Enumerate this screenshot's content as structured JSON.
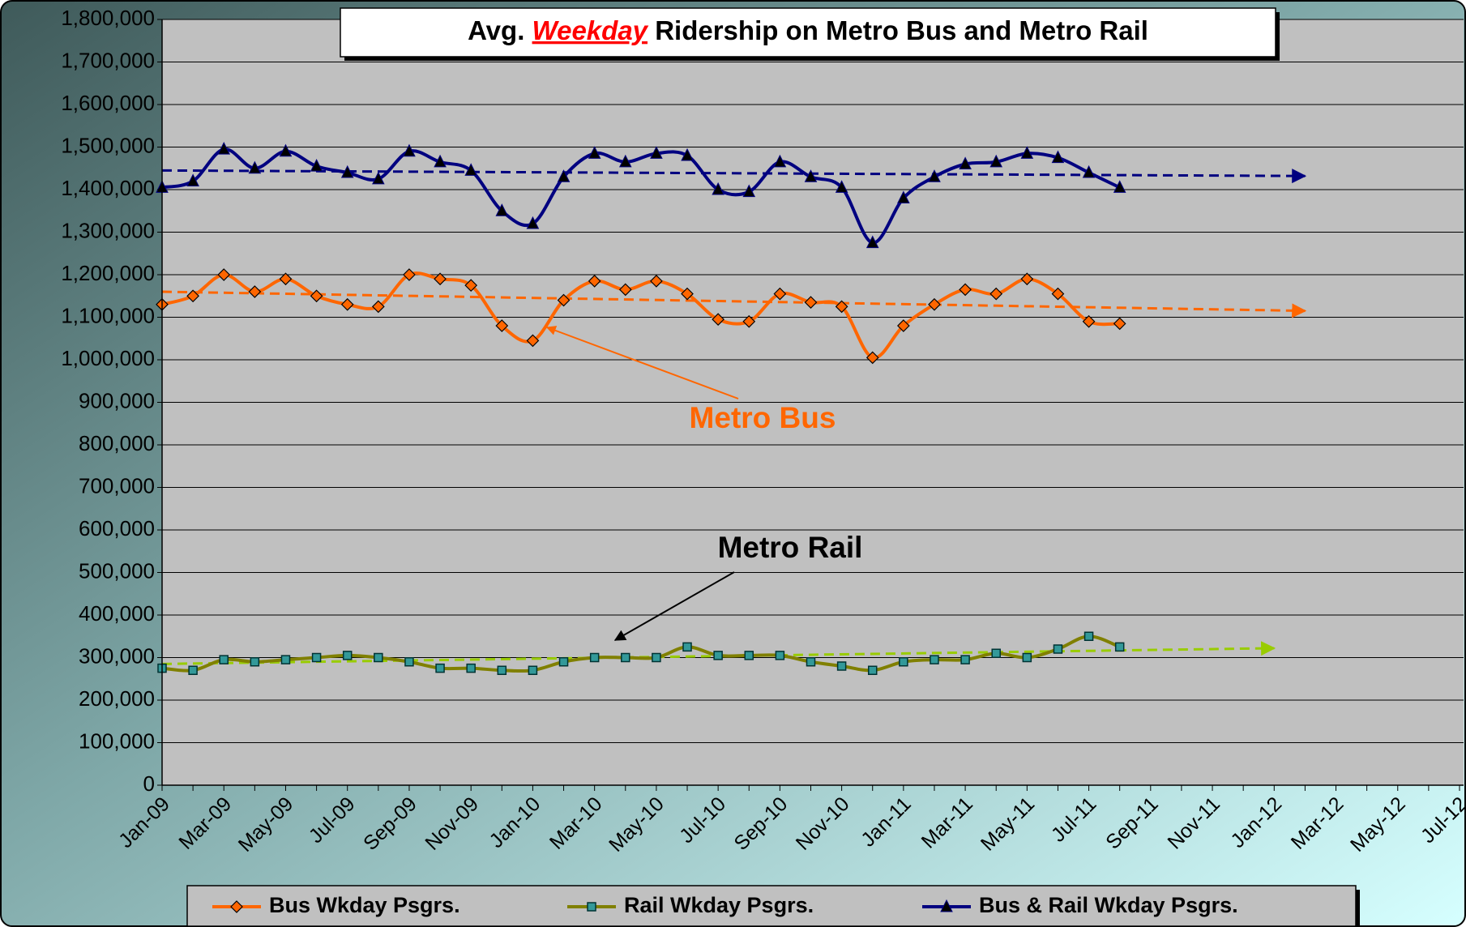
{
  "chart_data": {
    "type": "line",
    "title_parts": [
      "Avg.",
      "Weekday",
      "Ridership on Metro Bus and Metro Rail"
    ],
    "categories": [
      "Jan-09",
      null,
      "Mar-09",
      null,
      "May-09",
      null,
      "Jul-09",
      null,
      "Sep-09",
      null,
      "Nov-09",
      null,
      "Jan-10",
      null,
      "Mar-10",
      null,
      "May-10",
      null,
      "Jul-10",
      null,
      "Sep-10",
      null,
      "Nov-10",
      null,
      "Jan-11",
      null,
      "Mar-11",
      null,
      "May-11",
      null,
      "Jul-11",
      null,
      "Sep-11",
      null,
      "Nov-11",
      null,
      "Jan-12",
      null,
      "Mar-12",
      null,
      "May-12",
      null,
      "Jul-12"
    ],
    "series": [
      {
        "name": "Bus Wkday Psgrs.",
        "color": "#ff6600",
        "marker": "diamond",
        "values": [
          1130000,
          1150000,
          1200000,
          1160000,
          1190000,
          1150000,
          1130000,
          1125000,
          1200000,
          1190000,
          1175000,
          1080000,
          1045000,
          1140000,
          1185000,
          1165000,
          1185000,
          1155000,
          1095000,
          1090000,
          1155000,
          1135000,
          1125000,
          1005000,
          1080000,
          1130000,
          1165000,
          1155000,
          1190000,
          1155000,
          1090000,
          1085000,
          null,
          null,
          null,
          null,
          null,
          null,
          null,
          null,
          null,
          null,
          null
        ]
      },
      {
        "name": "Rail Wkday Psgrs.",
        "color": "#808000",
        "marker": "square",
        "values": [
          275000,
          270000,
          295000,
          290000,
          295000,
          300000,
          305000,
          300000,
          290000,
          275000,
          275000,
          270000,
          270000,
          290000,
          300000,
          300000,
          300000,
          325000,
          305000,
          305000,
          305000,
          290000,
          280000,
          270000,
          290000,
          295000,
          295000,
          310000,
          300000,
          320000,
          350000,
          325000,
          null,
          null,
          null,
          null,
          null,
          null,
          null,
          null,
          null,
          null,
          null
        ]
      },
      {
        "name": "Bus & Rail Wkday Psgrs.",
        "color": "#000080",
        "marker": "triangle",
        "values": [
          1405000,
          1420000,
          1495000,
          1450000,
          1490000,
          1455000,
          1440000,
          1425000,
          1490000,
          1465000,
          1445000,
          1350000,
          1320000,
          1430000,
          1485000,
          1465000,
          1485000,
          1480000,
          1400000,
          1395000,
          1465000,
          1430000,
          1405000,
          1275000,
          1380000,
          1430000,
          1460000,
          1465000,
          1485000,
          1475000,
          1440000,
          1405000,
          null,
          null,
          null,
          null,
          null,
          null,
          null,
          null,
          null,
          null,
          null
        ]
      }
    ],
    "trendlines": [
      {
        "color": "#000080",
        "x": [
          0,
          37
        ],
        "values": [
          1445000,
          1432000
        ]
      },
      {
        "color": "#ff6600",
        "x": [
          0,
          37
        ],
        "values": [
          1160000,
          1115000
        ]
      },
      {
        "color": "#99cc00",
        "x": [
          0,
          36
        ],
        "values": [
          285000,
          322000
        ]
      }
    ],
    "annotations": [
      {
        "text": "Metro Bus",
        "color": "#ff6600"
      },
      {
        "text": "Metro Rail",
        "color": "#000000"
      }
    ],
    "ylim": [
      0,
      1800000
    ],
    "yticks": [
      0,
      {
        "value": 100000,
        "label": "100,000"
      },
      {
        "value": 200000,
        "label": "200,000"
      },
      {
        "value": 300000,
        "label": "300,000"
      },
      {
        "value": 400000,
        "label": "400,000"
      },
      {
        "value": 500000,
        "label": "500,000"
      },
      {
        "value": 600000,
        "label": "600,000"
      },
      {
        "value": 700000,
        "label": "700,000"
      },
      {
        "value": 800000,
        "label": "800,000"
      },
      {
        "value": 900000,
        "label": "900,000"
      },
      {
        "value": 1000000,
        "label": "1,000,000"
      },
      {
        "value": 1100000,
        "label": "1,100,000"
      },
      {
        "value": 1200000,
        "label": "1,200,000"
      },
      {
        "value": 1300000,
        "label": "1,300,000"
      },
      {
        "value": 1400000,
        "label": "1,400,000"
      },
      {
        "value": 1500000,
        "label": "1,500,000"
      },
      {
        "value": 1600000,
        "label": "1,600,000"
      },
      {
        "value": 1700000,
        "label": "1,700,000"
      },
      {
        "value": 1800000,
        "label": "1,800,000"
      }
    ],
    "grid": true
  }
}
